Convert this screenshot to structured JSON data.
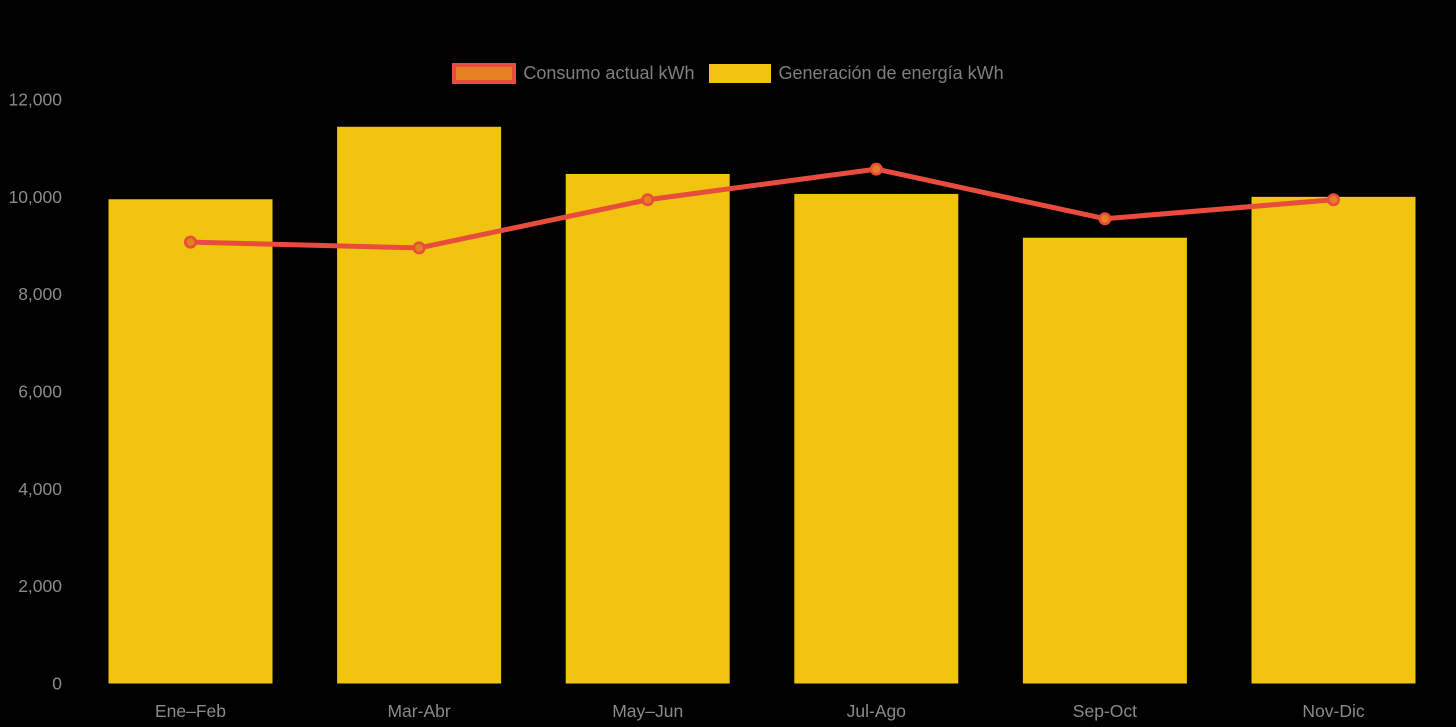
{
  "chart_data": {
    "type": "bar",
    "subtype": "bar-with-line-overlay",
    "title": "",
    "xlabel": "",
    "ylabel": "",
    "categories": [
      "Ene–Feb",
      "Mar-Abr",
      "May–Jun",
      "Jul-Ago",
      "Sep-Oct",
      "Nov-Dic"
    ],
    "series": [
      {
        "name": "Consumo actual kWh",
        "kind": "line",
        "color": "#e74c3c",
        "marker_color": "#e67e22",
        "values": [
          9070,
          8950,
          9940,
          10570,
          9550,
          9940
        ]
      },
      {
        "name": "Generación de energía kWh",
        "kind": "bar",
        "color": "#f1c40f",
        "values": [
          9950,
          11440,
          10470,
          10060,
          9160,
          10000
        ]
      }
    ],
    "ylim": [
      0,
      12000
    ],
    "ytick_step": 2000,
    "yticklabels": [
      "0",
      "2,000",
      "4,000",
      "6,000",
      "8,000",
      "10,000",
      "12,000"
    ],
    "legend_position": "top-center",
    "grid": false,
    "background_color": "#000000",
    "axis_text_color": "#8a8a8a"
  }
}
